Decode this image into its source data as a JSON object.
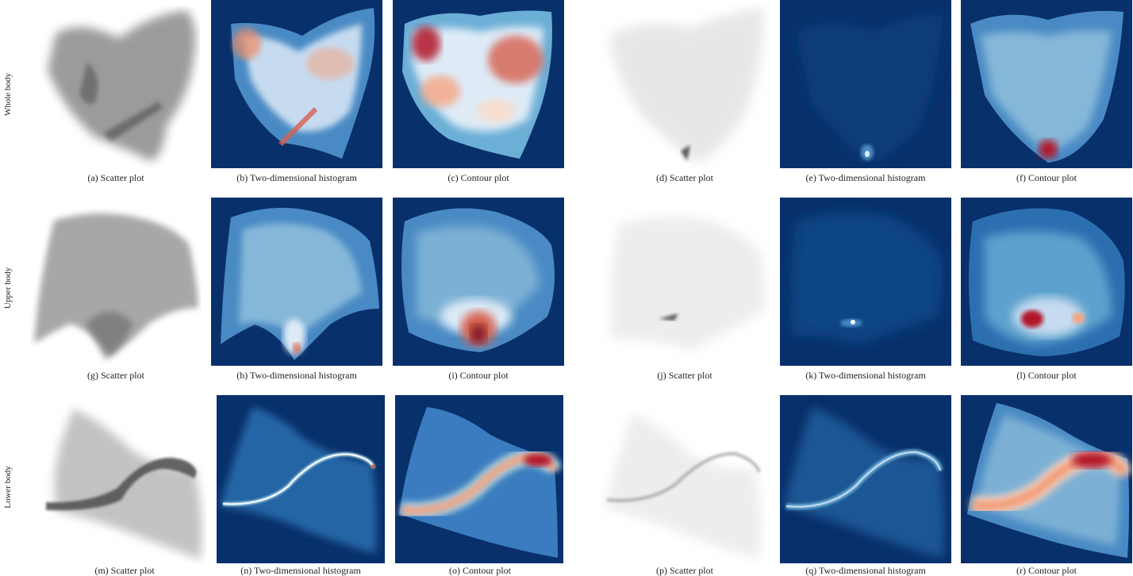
{
  "rows": [
    {
      "label": "Whole body",
      "captions": [
        "(a) Scatter plot",
        "(b) Two-dimensional histogram",
        "(c) Contour plot",
        "(d) Scatter plot",
        "(e) Two-dimensional histogram",
        "(f) Contour plot"
      ]
    },
    {
      "label": "Upper body",
      "captions": [
        "(g) Scatter plot",
        "(h) Two-dimensional histogram",
        "(i) Contour plot",
        "(j) Scatter plot",
        "(k) Two-dimensional histogram",
        "(l) Contour plot"
      ]
    },
    {
      "label": "Lower body",
      "captions": [
        "(m) Scatter plot",
        "(n) Two-dimensional histogram",
        "(o) Contour plot",
        "(p) Scatter plot",
        "(q) Two-dimensional histogram",
        "(r) Contour plot"
      ]
    }
  ],
  "colors": {
    "navy": "#08306b",
    "mid_blue": "#2c6fb0",
    "light_blue": "#9ecae1",
    "pale": "#f2f6fa",
    "red": "#b2182b",
    "light_red": "#ef8a62",
    "scatter_gray": "#6e6e6e"
  }
}
